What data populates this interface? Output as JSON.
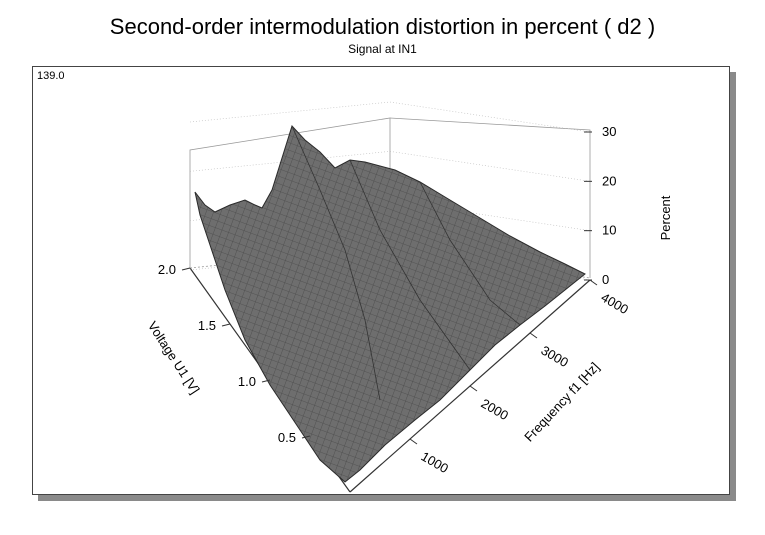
{
  "chart_data": {
    "type": "surface3d",
    "title": "Second-order intermodulation distortion in percent    ( d2 )",
    "subtitle": "Signal at IN1",
    "corner_label": "139.0",
    "xlabel": "Frequency f1  [Hz]",
    "ylabel": "Voltage U1  [V]",
    "zlabel": "Percent",
    "x_ticks": [
      "1000",
      "2000",
      "3000",
      "4000"
    ],
    "y_ticks": [
      "0.5",
      "1.0",
      "1.5",
      "2.0"
    ],
    "z_ticks": [
      "0",
      "10",
      "20",
      "30"
    ],
    "xlim": [
      0,
      4000
    ],
    "ylim": [
      0,
      2.0
    ],
    "zlim": [
      0,
      30
    ],
    "surface_color": "#6b6b6b",
    "peak": {
      "frequency": 1000,
      "voltage": 2.0,
      "percent": 33
    }
  }
}
